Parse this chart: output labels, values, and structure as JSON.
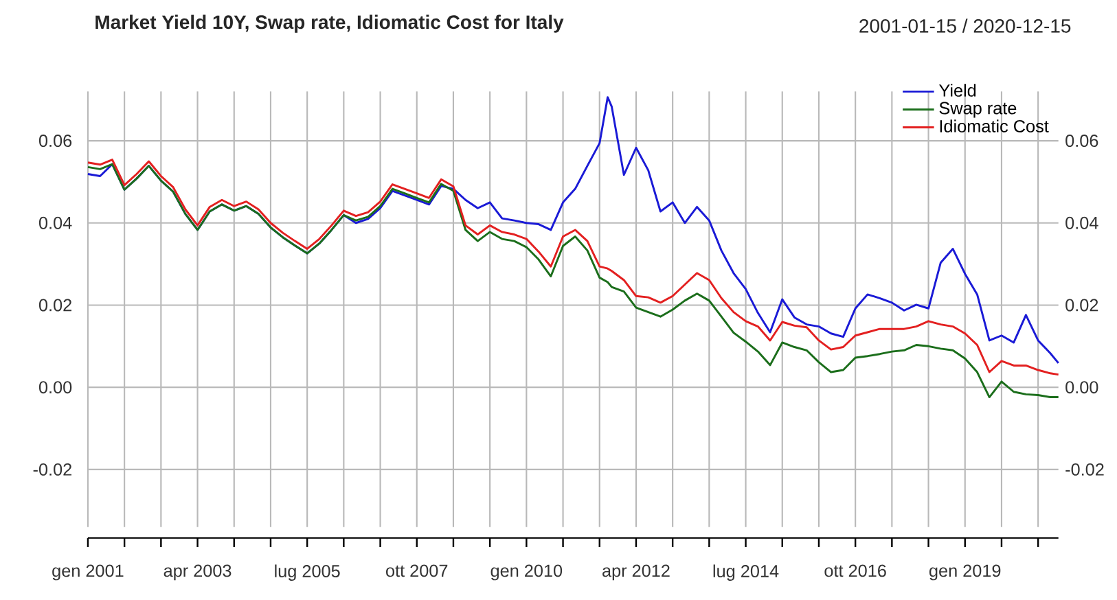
{
  "chart_data": {
    "type": "line",
    "title": "Market Yield 10Y, Swap rate, Idiomatic Cost for Italy",
    "subtitle": "2001-01-15 / 2020-12-15",
    "x": [
      "2001-01",
      "2001-04",
      "2001-07",
      "2001-10",
      "2002-01",
      "2002-04",
      "2002-07",
      "2002-10",
      "2003-01",
      "2003-04",
      "2003-07",
      "2003-10",
      "2004-01",
      "2004-04",
      "2004-07",
      "2004-10",
      "2005-01",
      "2005-04",
      "2005-07",
      "2005-10",
      "2006-01",
      "2006-04",
      "2006-07",
      "2006-10",
      "2007-01",
      "2007-04",
      "2007-07",
      "2007-10",
      "2008-01",
      "2008-04",
      "2008-07",
      "2008-10",
      "2009-01",
      "2009-04",
      "2009-07",
      "2009-10",
      "2010-01",
      "2010-04",
      "2010-07",
      "2010-10",
      "2011-01",
      "2011-04",
      "2011-07",
      "2011-09",
      "2011-10",
      "2012-01",
      "2012-04",
      "2012-07",
      "2012-10",
      "2013-01",
      "2013-04",
      "2013-07",
      "2013-10",
      "2014-01",
      "2014-04",
      "2014-07",
      "2014-10",
      "2015-01",
      "2015-04",
      "2015-07",
      "2015-10",
      "2016-01",
      "2016-04",
      "2016-07",
      "2016-10",
      "2017-01",
      "2017-04",
      "2017-07",
      "2017-10",
      "2018-01",
      "2018-04",
      "2018-07",
      "2018-10",
      "2019-01",
      "2019-04",
      "2019-07",
      "2019-10",
      "2020-01",
      "2020-04",
      "2020-07",
      "2020-10",
      "2020-12"
    ],
    "series": [
      {
        "name": "Yield",
        "color": "#1a1ad6",
        "values": [
          0.0519,
          0.0514,
          0.0543,
          0.0481,
          0.0508,
          0.0539,
          0.0503,
          0.0476,
          0.0422,
          0.0383,
          0.0428,
          0.0445,
          0.043,
          0.0441,
          0.0422,
          0.0389,
          0.0365,
          0.0345,
          0.0326,
          0.035,
          0.0383,
          0.0419,
          0.04,
          0.041,
          0.0436,
          0.0478,
          0.0467,
          0.0456,
          0.0445,
          0.049,
          0.0483,
          0.0456,
          0.0436,
          0.045,
          0.0411,
          0.0406,
          0.04,
          0.0397,
          0.0383,
          0.045,
          0.0483,
          0.0539,
          0.0594,
          0.0706,
          0.0683,
          0.0517,
          0.0583,
          0.0528,
          0.0428,
          0.045,
          0.04,
          0.0439,
          0.0406,
          0.0333,
          0.0278,
          0.0239,
          0.0181,
          0.0134,
          0.0214,
          0.017,
          0.0153,
          0.0148,
          0.0131,
          0.0123,
          0.0192,
          0.0226,
          0.0217,
          0.0206,
          0.0187,
          0.0201,
          0.0192,
          0.0303,
          0.0337,
          0.0276,
          0.0226,
          0.0114,
          0.0126,
          0.0109,
          0.0176,
          0.0114,
          0.0083,
          0.0059
        ]
      },
      {
        "name": "Swap rate",
        "color": "#1b6e1b",
        "values": [
          0.0536,
          0.0531,
          0.0543,
          0.0481,
          0.0508,
          0.0539,
          0.0503,
          0.0476,
          0.0422,
          0.0383,
          0.0428,
          0.0445,
          0.043,
          0.0441,
          0.0422,
          0.0389,
          0.0365,
          0.0345,
          0.0326,
          0.035,
          0.0383,
          0.0419,
          0.0406,
          0.0415,
          0.0441,
          0.0483,
          0.0472,
          0.0461,
          0.045,
          0.0495,
          0.0478,
          0.0383,
          0.0356,
          0.0378,
          0.0361,
          0.0356,
          0.0341,
          0.0311,
          0.027,
          0.0344,
          0.0367,
          0.0333,
          0.0267,
          0.0256,
          0.0244,
          0.0233,
          0.0194,
          0.0183,
          0.0172,
          0.0189,
          0.0211,
          0.0228,
          0.0211,
          0.0172,
          0.0133,
          0.0111,
          0.0087,
          0.0054,
          0.0109,
          0.0098,
          0.009,
          0.0061,
          0.0037,
          0.0042,
          0.0072,
          0.0076,
          0.0081,
          0.0087,
          0.009,
          0.0103,
          0.01,
          0.0094,
          0.009,
          0.007,
          0.0037,
          -0.0024,
          0.0014,
          -0.0011,
          -0.0017,
          -0.0019,
          -0.0024,
          -0.0024
        ]
      },
      {
        "name": "Idiomatic Cost",
        "color": "#e32020",
        "values": [
          0.0547,
          0.0542,
          0.0554,
          0.0492,
          0.0519,
          0.055,
          0.0514,
          0.0487,
          0.0433,
          0.0394,
          0.0439,
          0.0456,
          0.0441,
          0.0452,
          0.0433,
          0.04,
          0.0376,
          0.0356,
          0.0337,
          0.0361,
          0.0394,
          0.043,
          0.0417,
          0.0426,
          0.0452,
          0.0494,
          0.0483,
          0.0472,
          0.0461,
          0.0506,
          0.0489,
          0.0394,
          0.0372,
          0.0394,
          0.0378,
          0.0372,
          0.0361,
          0.033,
          0.0294,
          0.0367,
          0.0383,
          0.0356,
          0.0294,
          0.0289,
          0.0283,
          0.0261,
          0.0222,
          0.0219,
          0.0206,
          0.0222,
          0.025,
          0.0278,
          0.0261,
          0.0217,
          0.0183,
          0.0161,
          0.0148,
          0.0114,
          0.0159,
          0.015,
          0.0146,
          0.0114,
          0.0092,
          0.0098,
          0.0126,
          0.0134,
          0.0142,
          0.0142,
          0.0142,
          0.0148,
          0.0161,
          0.0153,
          0.0148,
          0.0131,
          0.0103,
          0.0037,
          0.0064,
          0.0053,
          0.0053,
          0.0042,
          0.0034,
          0.0031
        ]
      }
    ],
    "xlim": [
      "2001-01",
      "2020-12"
    ],
    "xticks": [
      {
        "value": "2001-01",
        "label": "gen 2001"
      },
      {
        "value": "2001-10",
        "label": null
      },
      {
        "value": "2002-07",
        "label": null
      },
      {
        "value": "2003-04",
        "label": "apr 2003"
      },
      {
        "value": "2004-01",
        "label": null
      },
      {
        "value": "2004-10",
        "label": null
      },
      {
        "value": "2005-07",
        "label": "lug 2005"
      },
      {
        "value": "2006-04",
        "label": null
      },
      {
        "value": "2007-01",
        "label": null
      },
      {
        "value": "2007-10",
        "label": "ott 2007"
      },
      {
        "value": "2008-07",
        "label": null
      },
      {
        "value": "2009-04",
        "label": null
      },
      {
        "value": "2010-01",
        "label": "gen 2010"
      },
      {
        "value": "2010-10",
        "label": null
      },
      {
        "value": "2011-07",
        "label": null
      },
      {
        "value": "2012-04",
        "label": "apr 2012"
      },
      {
        "value": "2013-01",
        "label": null
      },
      {
        "value": "2013-10",
        "label": null
      },
      {
        "value": "2014-07",
        "label": "lug 2014"
      },
      {
        "value": "2015-04",
        "label": null
      },
      {
        "value": "2016-01",
        "label": null
      },
      {
        "value": "2016-10",
        "label": "ott 2016"
      },
      {
        "value": "2017-07",
        "label": null
      },
      {
        "value": "2018-04",
        "label": null
      },
      {
        "value": "2019-01",
        "label": "gen 2019"
      },
      {
        "value": "2019-10",
        "label": null
      },
      {
        "value": "2020-07",
        "label": null
      }
    ],
    "ylim": [
      -0.034,
      0.072
    ],
    "yticks": [
      {
        "value": -0.02,
        "label": "-0.02"
      },
      {
        "value": 0,
        "label": "0.00"
      },
      {
        "value": 0.02,
        "label": "0.02"
      },
      {
        "value": 0.04,
        "label": "0.04"
      },
      {
        "value": 0.06,
        "label": "0.06"
      }
    ],
    "y2lim": [
      -0.034,
      0.072
    ],
    "y2ticks": [
      {
        "value": -0.02,
        "label": "-0.02"
      },
      {
        "value": 0,
        "label": "0.00"
      },
      {
        "value": 0.02,
        "label": "0.02"
      },
      {
        "value": 0.04,
        "label": "0.04"
      },
      {
        "value": 0.06,
        "label": "0.06"
      }
    ],
    "grid": true,
    "legend": "top right"
  }
}
